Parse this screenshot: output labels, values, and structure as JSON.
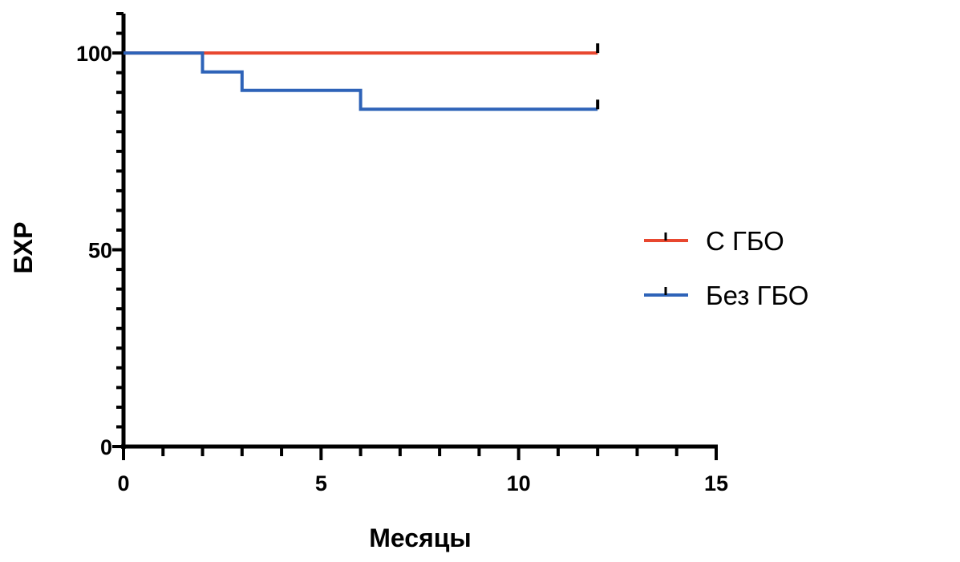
{
  "chart_data": {
    "type": "line",
    "step": true,
    "xlabel": "Месяцы",
    "ylabel": "БХР",
    "xlim": [
      0,
      15
    ],
    "ylim": [
      0,
      110
    ],
    "x_ticks": [
      "0",
      "5",
      "10",
      "15"
    ],
    "y_ticks": [
      "0",
      "50",
      "100"
    ],
    "x_minor_step": 1,
    "y_minor_step": 5,
    "grid": false,
    "legend_position": "right",
    "series": [
      {
        "name": "С ГБО",
        "color": "#e8472f",
        "points": [
          [
            0,
            100
          ],
          [
            12,
            100
          ]
        ],
        "censored": [
          [
            12,
            100
          ]
        ]
      },
      {
        "name": "Без ГБО",
        "color": "#2e63b8",
        "points": [
          [
            0,
            100
          ],
          [
            2,
            100
          ],
          [
            2,
            95.2
          ],
          [
            3,
            95.2
          ],
          [
            3,
            90.5
          ],
          [
            6,
            90.5
          ],
          [
            6,
            85.7
          ],
          [
            12,
            85.7
          ]
        ],
        "censored": [
          [
            12,
            85.7
          ]
        ]
      }
    ]
  }
}
